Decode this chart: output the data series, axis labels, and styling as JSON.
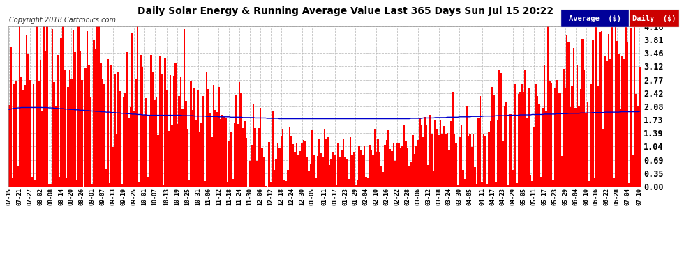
{
  "title": "Daily Solar Energy & Running Average Value Last 365 Days Sun Jul 15 20:22",
  "copyright": "Copyright 2018 Cartronics.com",
  "ylabel_right_ticks": [
    0.0,
    0.35,
    0.69,
    1.04,
    1.39,
    1.73,
    2.08,
    2.42,
    2.77,
    3.12,
    3.46,
    3.81,
    4.16
  ],
  "ylim": [
    0.0,
    4.16
  ],
  "bar_color": "#FF0000",
  "avg_color": "#0000CC",
  "fig_bg_color": "#FFFFFF",
  "plot_bg_color": "#FFFFFF",
  "grid_color": "#BBBBBB",
  "title_color": "#000000",
  "copyright_color": "#333333",
  "legend_avg_bg": "#000099",
  "legend_daily_bg": "#CC0000",
  "legend_avg_text": "Average  ($)",
  "legend_daily_text": "Daily  ($)",
  "x_labels": [
    "07-15",
    "07-21",
    "07-27",
    "08-02",
    "08-08",
    "08-14",
    "08-20",
    "08-26",
    "09-01",
    "09-07",
    "09-13",
    "09-19",
    "09-25",
    "10-01",
    "10-07",
    "10-13",
    "10-19",
    "10-25",
    "10-31",
    "11-06",
    "11-12",
    "11-18",
    "11-24",
    "11-30",
    "12-06",
    "12-12",
    "12-18",
    "12-24",
    "12-30",
    "01-05",
    "01-11",
    "01-17",
    "01-23",
    "01-29",
    "02-04",
    "02-10",
    "02-16",
    "02-22",
    "02-28",
    "03-06",
    "03-12",
    "03-18",
    "03-24",
    "03-30",
    "04-05",
    "04-11",
    "04-17",
    "04-23",
    "04-29",
    "05-05",
    "05-11",
    "05-17",
    "05-23",
    "05-29",
    "06-04",
    "06-10",
    "06-16",
    "06-22",
    "06-28",
    "07-04",
    "07-10"
  ],
  "n_days": 365,
  "seed": 42,
  "avg_values": [
    2.0,
    2.01,
    2.02,
    2.03,
    2.03,
    2.04,
    2.04,
    2.05,
    2.05,
    2.05,
    2.05,
    2.05,
    2.05,
    2.05,
    2.05,
    2.05,
    2.05,
    2.05,
    2.05,
    2.05,
    2.05,
    2.05,
    2.05,
    2.04,
    2.04,
    2.04,
    2.03,
    2.03,
    2.03,
    2.02,
    2.02,
    2.02,
    2.01,
    2.01,
    2.01,
    2.0,
    2.0,
    2.0,
    1.99,
    1.99,
    1.99,
    1.98,
    1.98,
    1.98,
    1.97,
    1.97,
    1.97,
    1.96,
    1.96,
    1.96,
    1.95,
    1.95,
    1.95,
    1.94,
    1.94,
    1.94,
    1.93,
    1.93,
    1.93,
    1.92,
    1.92,
    1.92,
    1.91,
    1.91,
    1.91,
    1.9,
    1.9,
    1.9,
    1.89,
    1.89,
    1.89,
    1.88,
    1.88,
    1.88,
    1.87,
    1.87,
    1.87,
    1.86,
    1.86,
    1.86,
    1.85,
    1.85,
    1.85,
    1.85,
    1.85,
    1.85,
    1.85,
    1.85,
    1.85,
    1.85,
    1.85,
    1.85,
    1.85,
    1.85,
    1.85,
    1.85,
    1.85,
    1.85,
    1.85,
    1.85,
    1.84,
    1.84,
    1.84,
    1.84,
    1.84,
    1.84,
    1.84,
    1.83,
    1.83,
    1.83,
    1.83,
    1.83,
    1.83,
    1.83,
    1.82,
    1.82,
    1.82,
    1.82,
    1.82,
    1.82,
    1.82,
    1.81,
    1.81,
    1.81,
    1.81,
    1.81,
    1.81,
    1.81,
    1.8,
    1.8,
    1.8,
    1.8,
    1.8,
    1.8,
    1.8,
    1.79,
    1.79,
    1.79,
    1.79,
    1.79,
    1.79,
    1.79,
    1.78,
    1.78,
    1.78,
    1.78,
    1.78,
    1.78,
    1.78,
    1.77,
    1.77,
    1.77,
    1.77,
    1.77,
    1.77,
    1.77,
    1.76,
    1.76,
    1.76,
    1.76,
    1.76,
    1.76,
    1.76,
    1.76,
    1.76,
    1.76,
    1.76,
    1.76,
    1.76,
    1.76,
    1.76,
    1.76,
    1.76,
    1.76,
    1.76,
    1.76,
    1.76,
    1.76,
    1.76,
    1.76,
    1.76,
    1.76,
    1.76,
    1.76,
    1.76,
    1.76,
    1.76,
    1.76,
    1.76,
    1.76,
    1.76,
    1.76,
    1.76,
    1.76,
    1.76,
    1.76,
    1.76,
    1.76,
    1.76,
    1.76,
    1.76,
    1.76,
    1.76,
    1.76,
    1.76,
    1.76,
    1.76,
    1.76,
    1.76,
    1.76,
    1.76,
    1.76,
    1.76,
    1.76,
    1.76,
    1.76,
    1.76,
    1.76,
    1.76,
    1.76,
    1.76,
    1.76,
    1.76,
    1.76,
    1.76,
    1.76,
    1.76,
    1.76,
    1.76,
    1.76,
    1.76,
    1.76,
    1.77,
    1.77,
    1.77,
    1.77,
    1.77,
    1.77,
    1.77,
    1.78,
    1.78,
    1.78,
    1.78,
    1.78,
    1.78,
    1.78,
    1.79,
    1.79,
    1.79,
    1.79,
    1.79,
    1.79,
    1.79,
    1.8,
    1.8,
    1.8,
    1.8,
    1.8,
    1.8,
    1.8,
    1.81,
    1.81,
    1.81,
    1.81,
    1.81,
    1.81,
    1.81,
    1.82,
    1.82,
    1.82,
    1.82,
    1.82,
    1.82,
    1.82,
    1.83,
    1.83,
    1.83,
    1.83,
    1.83,
    1.83,
    1.83,
    1.84,
    1.84,
    1.84,
    1.84,
    1.84,
    1.84,
    1.84,
    1.85,
    1.85,
    1.85,
    1.85,
    1.85,
    1.85,
    1.85,
    1.86,
    1.86,
    1.86,
    1.86,
    1.86,
    1.86,
    1.86,
    1.87,
    1.87,
    1.87,
    1.87,
    1.87,
    1.87,
    1.87,
    1.88,
    1.88,
    1.88,
    1.88,
    1.88,
    1.88,
    1.88,
    1.89,
    1.89,
    1.89,
    1.89,
    1.89,
    1.89,
    1.89,
    1.9,
    1.9,
    1.9,
    1.9,
    1.9,
    1.9,
    1.9,
    1.91,
    1.91,
    1.91,
    1.91,
    1.91,
    1.91,
    1.91,
    1.92,
    1.92,
    1.92,
    1.92,
    1.92,
    1.92,
    1.92,
    1.93,
    1.93,
    1.93,
    1.93,
    1.93,
    1.93,
    1.93,
    1.93,
    1.93,
    1.94,
    1.94,
    1.94,
    1.94,
    1.94,
    1.94,
    1.94,
    1.94,
    1.94,
    1.94,
    1.94,
    1.95
  ]
}
